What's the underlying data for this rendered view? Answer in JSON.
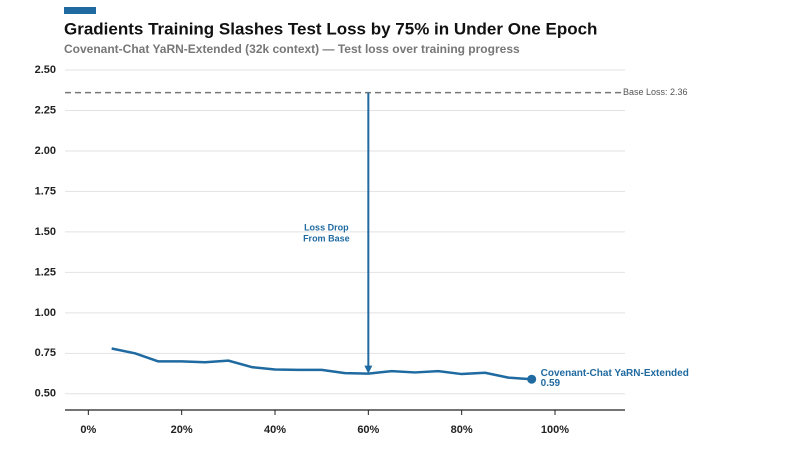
{
  "chart_data": {
    "type": "line",
    "title": "Gradients Training Slashes Test Loss by 75% in Under One Epoch",
    "subtitle": "Covenant-Chat YaRN-Extended (32k context) — Test loss over training progress",
    "x": [
      5,
      10,
      15,
      20,
      25,
      30,
      35,
      40,
      45,
      50,
      55,
      60,
      65,
      70,
      75,
      80,
      85,
      90,
      95
    ],
    "series": [
      {
        "name": "Covenant-Chat YaRN-Extended",
        "color": "#1f6aa0",
        "values": [
          0.78,
          0.75,
          0.7,
          0.7,
          0.695,
          0.705,
          0.665,
          0.65,
          0.648,
          0.648,
          0.628,
          0.625,
          0.64,
          0.632,
          0.64,
          0.622,
          0.63,
          0.6,
          0.59
        ],
        "value_labels": [
          null,
          null,
          null,
          null,
          null,
          null,
          null,
          null,
          null,
          null,
          null,
          null,
          null,
          null,
          null,
          null,
          null,
          null,
          "0.59"
        ]
      }
    ],
    "xlim": [
      -5,
      115
    ],
    "xticks": [
      {
        "value": 0,
        "label": "0%"
      },
      {
        "value": 20,
        "label": "20%"
      },
      {
        "value": 40,
        "label": "40%"
      },
      {
        "value": 60,
        "label": "60%"
      },
      {
        "value": 80,
        "label": "80%"
      },
      {
        "value": 100,
        "label": "100%"
      }
    ],
    "ylim": [
      0.4,
      2.5
    ],
    "yticks": [
      {
        "value": 0.5,
        "label": "0.50"
      },
      {
        "value": 0.75,
        "label": "0.75"
      },
      {
        "value": 1.0,
        "label": "1.00"
      },
      {
        "value": 1.25,
        "label": "1.25"
      },
      {
        "value": 1.5,
        "label": "1.50"
      },
      {
        "value": 1.75,
        "label": "1.75"
      },
      {
        "value": 2.0,
        "label": "2.00"
      },
      {
        "value": 2.25,
        "label": "2.25"
      },
      {
        "value": 2.5,
        "label": "2.50"
      }
    ],
    "grid": true,
    "reference_line": {
      "value": 2.36,
      "label": "Base Loss: 2.36",
      "color": "#777777"
    },
    "annotation": {
      "text": [
        "Loss Drop",
        "From Base"
      ],
      "x": 60,
      "y_from": 2.36,
      "y_to": 0.625
    }
  }
}
